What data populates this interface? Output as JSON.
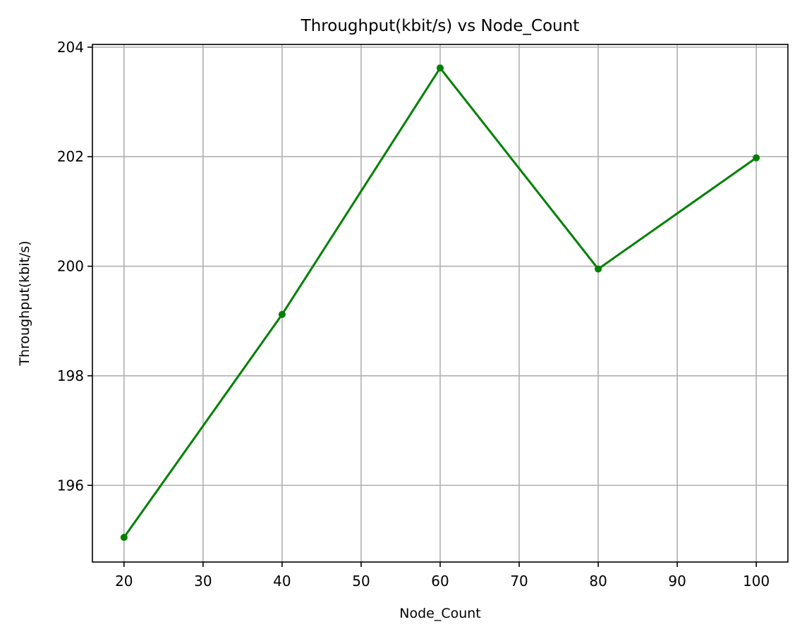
{
  "chart_data": {
    "type": "line",
    "title": "Throughput(kbit/s) vs Node_Count",
    "xlabel": "Node_Count",
    "ylabel": "Throughput(kbit/s)",
    "x": [
      20,
      40,
      60,
      80,
      100
    ],
    "series": [
      {
        "values": [
          195.05,
          199.12,
          203.62,
          199.95,
          201.98
        ],
        "color": "#008000",
        "marker": "circle"
      }
    ],
    "xlim": [
      16,
      104
    ],
    "ylim": [
      194.6,
      204.05
    ],
    "xticks": [
      20,
      30,
      40,
      50,
      60,
      70,
      80,
      90,
      100
    ],
    "yticks": [
      196,
      198,
      200,
      202,
      204
    ],
    "grid": true,
    "grid_color": "#b0b0b0",
    "axis_color": "#000000"
  }
}
